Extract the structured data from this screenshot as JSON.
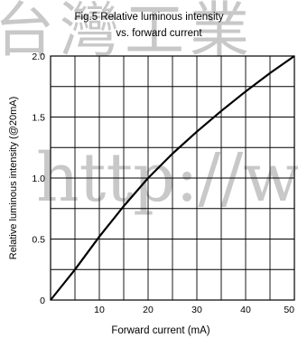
{
  "chart_data": {
    "type": "line",
    "title_lines": [
      "Fig.5 Relative luminous intensity",
      "vs. forward current"
    ],
    "xlabel": "Forward current (mA)",
    "ylabel": "Relative luminous intensity (@20mA)",
    "xlim": [
      0,
      50
    ],
    "ylim": [
      0,
      2.0
    ],
    "x_ticks": [
      10,
      20,
      30,
      40,
      50
    ],
    "y_ticks": [
      0,
      0.5,
      1.0,
      1.5,
      2.0
    ],
    "x_tick_labels": [
      "10",
      "20",
      "30",
      "40",
      "50"
    ],
    "y_tick_labels": [
      "0",
      "0.5",
      "1.0",
      "1.5",
      "2.0"
    ],
    "grid": true,
    "series": [
      {
        "x": [
          0,
          2,
          5,
          10,
          15,
          20,
          25,
          30,
          35,
          40,
          45,
          50
        ],
        "y": [
          0,
          0.1,
          0.25,
          0.52,
          0.77,
          1.0,
          1.2,
          1.38,
          1.55,
          1.71,
          1.86,
          2.0
        ]
      }
    ]
  },
  "watermark": {
    "line1": "台灣工業",
    "line2": "http://ww"
  },
  "colors": {
    "axis": "#000000",
    "grid": "#000000",
    "curve": "#000000",
    "watermark": "#c8c8c8"
  }
}
